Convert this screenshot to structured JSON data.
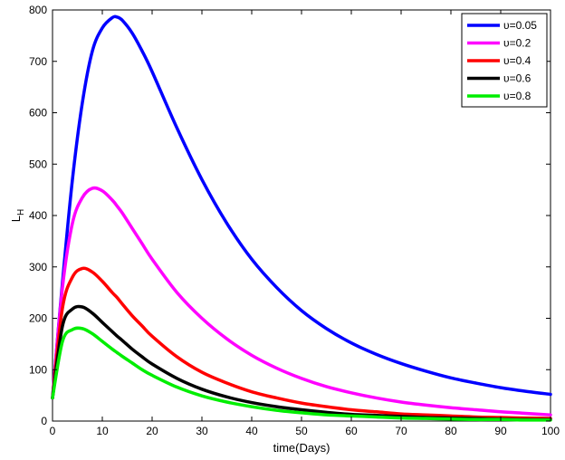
{
  "chart_data": {
    "type": "line",
    "xlabel": "time(Days)",
    "ylabel_main": "L",
    "ylabel_sub": "H",
    "xlim": [
      0,
      100
    ],
    "ylim": [
      0,
      800
    ],
    "x_ticks": [
      0,
      10,
      20,
      30,
      40,
      50,
      60,
      70,
      80,
      90,
      100
    ],
    "y_ticks": [
      0,
      100,
      200,
      300,
      400,
      500,
      600,
      700,
      800
    ],
    "legend_position": "top-right",
    "grid": false,
    "x": [
      0,
      2,
      4,
      6,
      8,
      10,
      12,
      13,
      14,
      16,
      18,
      20,
      25,
      30,
      35,
      40,
      45,
      50,
      55,
      60,
      65,
      70,
      75,
      80,
      85,
      90,
      95,
      100
    ],
    "series": [
      {
        "name": "υ=0.05",
        "color": "#0000ff",
        "values": [
          45,
          270,
          470,
          620,
          720,
          765,
          785,
          786,
          780,
          755,
          720,
          680,
          570,
          470,
          385,
          315,
          260,
          215,
          180,
          152,
          130,
          112,
          97,
          84,
          74,
          65,
          58,
          52
        ]
      },
      {
        "name": "υ=0.2",
        "color": "#ff00ff",
        "values": [
          45,
          260,
          385,
          435,
          453,
          448,
          430,
          418,
          405,
          375,
          345,
          315,
          250,
          200,
          160,
          128,
          103,
          83,
          67,
          55,
          45,
          37,
          31,
          26,
          22,
          18,
          15,
          12
        ]
      },
      {
        "name": "υ=0.4",
        "color": "#ff0000",
        "values": [
          45,
          220,
          280,
          297,
          290,
          272,
          250,
          240,
          228,
          205,
          185,
          165,
          125,
          95,
          74,
          57,
          45,
          35,
          28,
          22,
          18,
          14,
          12,
          10,
          8,
          7,
          6,
          5
        ]
      },
      {
        "name": "υ=0.6",
        "color": "#000000",
        "values": [
          45,
          185,
          218,
          222,
          210,
          192,
          174,
          165,
          157,
          140,
          125,
          111,
          83,
          62,
          47,
          36,
          28,
          22,
          17,
          13,
          11,
          9,
          7,
          6,
          5,
          4,
          3,
          3
        ]
      },
      {
        "name": "υ=0.8",
        "color": "#00ee00",
        "values": [
          45,
          155,
          178,
          180,
          170,
          155,
          140,
          133,
          126,
          113,
          100,
          89,
          66,
          49,
          37,
          28,
          21,
          16,
          12,
          10,
          8,
          6,
          5,
          4,
          3,
          3,
          2,
          2
        ]
      }
    ]
  }
}
